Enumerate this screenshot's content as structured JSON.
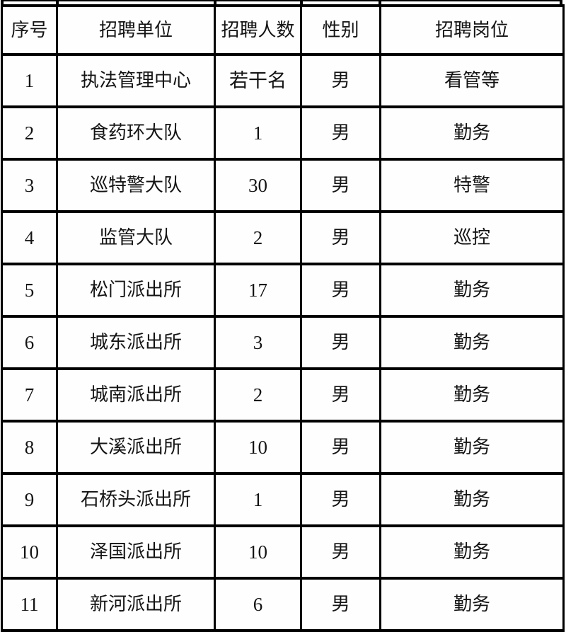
{
  "table": {
    "name": "recruitment-positions-table",
    "columns": [
      {
        "label": "序号"
      },
      {
        "label": "招聘单位"
      },
      {
        "label": "招聘人数"
      },
      {
        "label": "性别"
      },
      {
        "label": "招聘岗位"
      }
    ],
    "rows": [
      [
        "1",
        "执法管理中心",
        "若干名",
        "男",
        "看管等"
      ],
      [
        "2",
        "食药环大队",
        "1",
        "男",
        "勤务"
      ],
      [
        "3",
        "巡特警大队",
        "30",
        "男",
        "特警"
      ],
      [
        "4",
        "监管大队",
        "2",
        "男",
        "巡控"
      ],
      [
        "5",
        "松门派出所",
        "17",
        "男",
        "勤务"
      ],
      [
        "6",
        "城东派出所",
        "3",
        "男",
        "勤务"
      ],
      [
        "7",
        "城南派出所",
        "2",
        "男",
        "勤务"
      ],
      [
        "8",
        "大溪派出所",
        "10",
        "男",
        "勤务"
      ],
      [
        "9",
        "石桥头派出所",
        "1",
        "男",
        "勤务"
      ],
      [
        "10",
        "泽国派出所",
        "10",
        "男",
        "勤务"
      ],
      [
        "11",
        "新河派出所",
        "6",
        "男",
        "勤务"
      ]
    ],
    "colors": {
      "border": "#000000",
      "background": "#fefefe",
      "text": "#141414"
    }
  }
}
